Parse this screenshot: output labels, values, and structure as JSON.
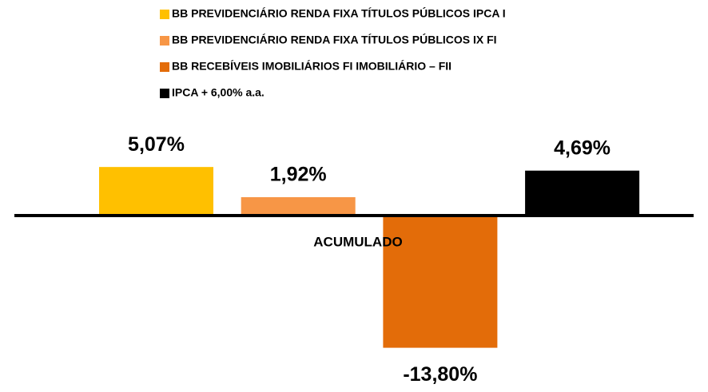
{
  "chart_data": {
    "type": "bar",
    "categories": [
      "ACUMULADO"
    ],
    "series": [
      {
        "name": "BB PREVIDENCIÁRIO RENDA FIXA TÍTULOS PÚBLICOS IPCA I",
        "color": "#FFC000",
        "values": [
          5.07
        ],
        "value_labels": [
          "5,07%"
        ]
      },
      {
        "name": "BB PREVIDENCIÁRIO RENDA FIXA TÍTULOS PÚBLICOS IX FI",
        "color": "#F79646",
        "values": [
          1.92
        ],
        "value_labels": [
          "1,92%"
        ]
      },
      {
        "name": "BB RECEBÍVEIS IMOBILIÁRIOS FI IMOBILIÁRIO – FII",
        "color": "#E36C09",
        "values": [
          -13.8
        ],
        "value_labels": [
          "-13,80%"
        ]
      },
      {
        "name": "IPCA + 6,00% a.a.",
        "color": "#000000",
        "values": [
          4.69
        ],
        "value_labels": [
          "4,69%"
        ]
      }
    ],
    "legend": "top"
  }
}
